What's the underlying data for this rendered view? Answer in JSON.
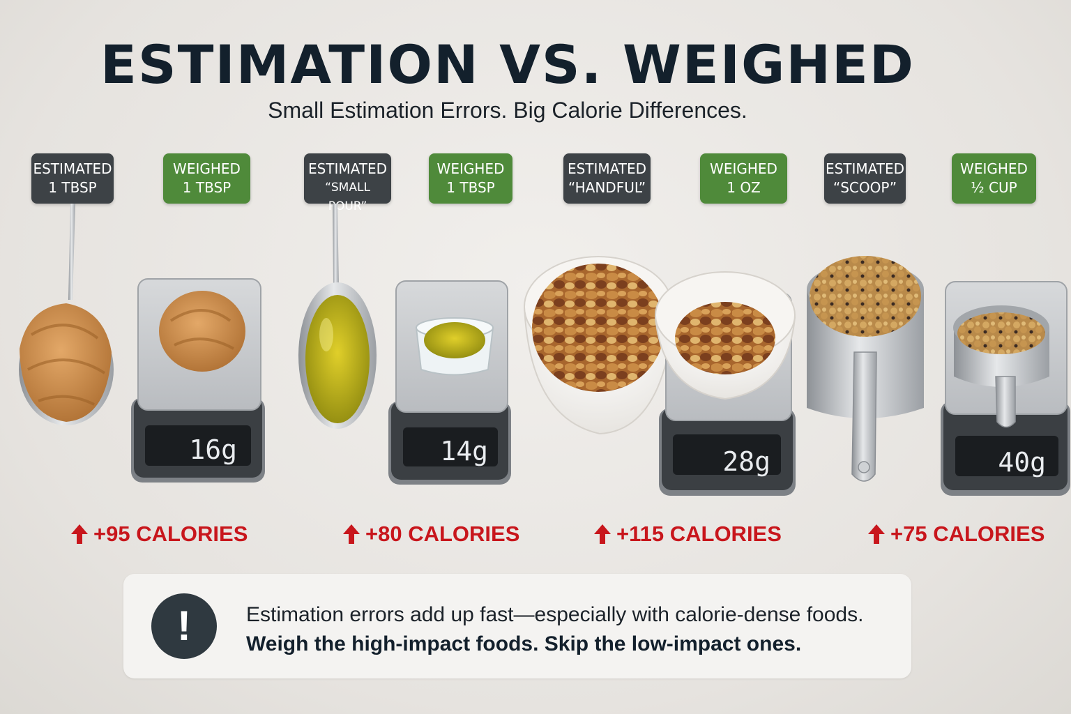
{
  "title": "ESTIMATION VS. WEIGHED",
  "subtitle": "Small Estimation Errors. Big Calorie Differences.",
  "tags": [
    {
      "type": "estimated",
      "line1": "ESTIMATED",
      "line2": "1 TBSP"
    },
    {
      "type": "weighed",
      "line1": "WEIGHED",
      "line2": "1 TBSP"
    },
    {
      "type": "estimated",
      "line1": "ESTIMATED",
      "line2": "“SMALL POUR”"
    },
    {
      "type": "weighed",
      "line1": "WEIGHED",
      "line2": "1 TBSP"
    },
    {
      "type": "estimated",
      "line1": "ESTIMATED",
      "line2": "“HANDFUL”"
    },
    {
      "type": "weighed",
      "line1": "WEIGHED",
      "line2": "1 OZ"
    },
    {
      "type": "estimated",
      "line1": "ESTIMATED",
      "line2": "“SCOOP”"
    },
    {
      "type": "weighed",
      "line1": "WEIGHED",
      "line2": "½ CUP"
    }
  ],
  "scales": [
    {
      "reading": "16g"
    },
    {
      "reading": "14g"
    },
    {
      "reading": "28g"
    },
    {
      "reading": "40g"
    }
  ],
  "calories": [
    {
      "text": "+95 CALORIES"
    },
    {
      "text": "+80 CALORIES"
    },
    {
      "text": "+115 CALORIES"
    },
    {
      "text": "+75 CALORIES"
    }
  ],
  "notice": {
    "icon": "exclamation-icon",
    "symbol": "!",
    "line1": "Estimation errors add up fast—especially with calorie-dense foods.",
    "line2": "Weigh the high-impact foods. Skip the low-impact ones."
  },
  "colors": {
    "estimated_tag": "#3d4246",
    "weighed_tag": "#4f8a3a",
    "calorie_red": "#c8161c",
    "title": "#13202c"
  }
}
